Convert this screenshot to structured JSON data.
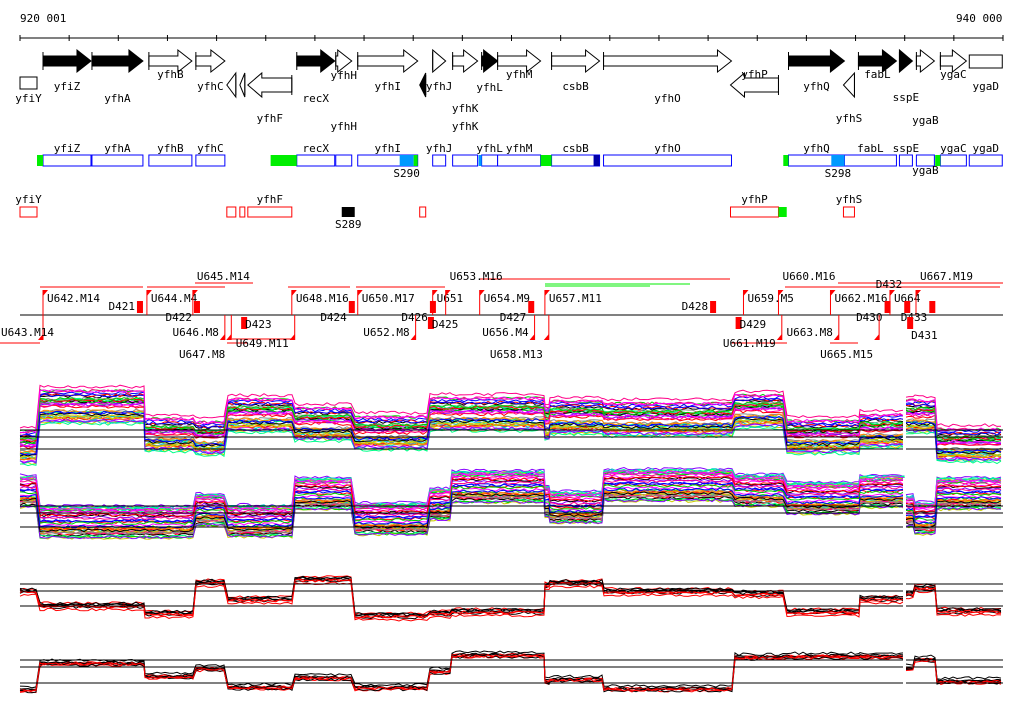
{
  "ruler": {
    "start_label": "920 001",
    "end_label": "940 000",
    "start_bp": 920001,
    "end_bp": 940000
  },
  "genes": [
    {
      "name": "yfiY",
      "start": 920001,
      "end": 920347,
      "strand": "none",
      "fill": "white"
    },
    {
      "name": "yfiZ",
      "start": 920469,
      "end": 921445,
      "strand": "+",
      "fill": "black"
    },
    {
      "name": "yfhA",
      "start": 921465,
      "end": 922502,
      "strand": "+",
      "fill": "black"
    },
    {
      "name": "yfhB",
      "start": 922623,
      "end": 923498,
      "strand": "+",
      "fill": "white"
    },
    {
      "name": "yfhC",
      "start": 923579,
      "end": 924169,
      "strand": "+",
      "fill": "white"
    },
    {
      "name": "",
      "start": 924209,
      "end": 924392,
      "strand": "-",
      "fill": "white"
    },
    {
      "name": "",
      "start": 924474,
      "end": 924575,
      "strand": "-",
      "fill": "white"
    },
    {
      "name": "yfhF",
      "start": 924636,
      "end": 925531,
      "strand": "-",
      "fill": "white"
    },
    {
      "name": "recX",
      "start": 925632,
      "end": 926404,
      "strand": "+",
      "fill": "black"
    },
    {
      "name": "yfhH",
      "start": 926425,
      "end": 926750,
      "strand": "+",
      "fill": "white"
    },
    {
      "name": "yfhI",
      "start": 926872,
      "end": 928092,
      "strand": "+",
      "fill": "white"
    },
    {
      "name": "",
      "start": 928133,
      "end": 928255,
      "strand": "-",
      "fill": "black"
    },
    {
      "name": "yfhJ",
      "start": 928397,
      "end": 928661,
      "strand": "+",
      "fill": "white"
    },
    {
      "name": "yfhK",
      "start": 928803,
      "end": 929311,
      "strand": "+",
      "fill": "white"
    },
    {
      "name": "yfhL",
      "start": 929393,
      "end": 929718,
      "strand": "+",
      "fill": "black"
    },
    {
      "name": "yfhM",
      "start": 929718,
      "end": 930592,
      "strand": "+",
      "fill": "white"
    },
    {
      "name": "csbB",
      "start": 930816,
      "end": 931792,
      "strand": "+",
      "fill": "white"
    },
    {
      "name": "yfhO",
      "start": 931873,
      "end": 934476,
      "strand": "+",
      "fill": "white"
    },
    {
      "name": "yfhP",
      "start": 934456,
      "end": 935432,
      "strand": "-",
      "fill": "white"
    },
    {
      "name": "yfhQ",
      "start": 935636,
      "end": 936774,
      "strand": "+",
      "fill": "black"
    },
    {
      "name": "yfhS",
      "start": 936754,
      "end": 936978,
      "strand": "-",
      "fill": "white"
    },
    {
      "name": "fabL",
      "start": 937059,
      "end": 937832,
      "strand": "+",
      "fill": "black"
    },
    {
      "name": "sspE",
      "start": 937893,
      "end": 938157,
      "strand": "+",
      "fill": "black"
    },
    {
      "name": "ygaB",
      "start": 938238,
      "end": 938604,
      "strand": "+",
      "fill": "white"
    },
    {
      "name": "ygaC",
      "start": 938726,
      "end": 939255,
      "strand": "+",
      "fill": "white"
    },
    {
      "name": "ygaD",
      "start": 939314,
      "end": 939985,
      "strand": "none",
      "fill": "white"
    }
  ],
  "operons_forward": [
    {
      "name": "yfiZ",
      "start": 920469,
      "end": 921445
    },
    {
      "name": "yfhA",
      "start": 921465,
      "end": 922502
    },
    {
      "name": "yfhB",
      "start": 922623,
      "end": 923498
    },
    {
      "name": "yfhC",
      "start": 923579,
      "end": 924169
    },
    {
      "name": "recX",
      "start": 925632,
      "end": 926404
    },
    {
      "name": "yfhH",
      "start": 926425,
      "end": 926750
    },
    {
      "name": "yfhI",
      "start": 926872,
      "end": 928092
    },
    {
      "name": "yfhJ",
      "start": 928397,
      "end": 928661
    },
    {
      "name": "yfhK",
      "start": 928803,
      "end": 929311
    },
    {
      "name": "yfhL",
      "start": 929393,
      "end": 929718
    },
    {
      "name": "yfhM",
      "start": 929718,
      "end": 930592
    },
    {
      "name": "csbB",
      "start": 930816,
      "end": 931792
    },
    {
      "name": "yfhO",
      "start": 931873,
      "end": 934476
    },
    {
      "name": "yfhQ",
      "start": 935636,
      "end": 936774
    },
    {
      "name": "fabL",
      "start": 936774,
      "end": 937832
    },
    {
      "name": "sspE",
      "start": 937893,
      "end": 938157
    },
    {
      "name": "ygaB",
      "start": 938238,
      "end": 938604
    },
    {
      "name": "ygaC",
      "start": 938726,
      "end": 939255
    },
    {
      "name": "ygaD",
      "start": 939314,
      "end": 939985
    }
  ],
  "forward_marks": [
    {
      "kind": "promoter",
      "start": 920347,
      "end": 920469,
      "color": "#00ee00"
    },
    {
      "kind": "promoter",
      "start": 925100,
      "end": 925632,
      "color": "#00ee00"
    },
    {
      "kind": "sigma",
      "label": "S290",
      "start": 927726,
      "end": 928010,
      "color": "#0099ff"
    },
    {
      "kind": "promoter",
      "start": 928010,
      "end": 928092,
      "color": "#00ee00"
    },
    {
      "kind": "sigma",
      "label": "",
      "start": 929331,
      "end": 929393,
      "color": "#0099ff"
    },
    {
      "kind": "promoter",
      "start": 930592,
      "end": 930816,
      "color": "#00ee00"
    },
    {
      "kind": "site",
      "label": "",
      "start": 931670,
      "end": 931792,
      "color": "#0000aa"
    },
    {
      "kind": "promoter",
      "start": 935530,
      "end": 935636,
      "color": "#00ee00"
    },
    {
      "kind": "sigma",
      "label": "S298",
      "start": 936507,
      "end": 936774,
      "color": "#0099ff"
    },
    {
      "kind": "promoter",
      "start": 938620,
      "end": 938726,
      "color": "#00ee00"
    }
  ],
  "operons_reverse": [
    {
      "name": "yfiY",
      "start": 920001,
      "end": 920347
    },
    {
      "name": "",
      "start": 924209,
      "end": 924392
    },
    {
      "name": "",
      "start": 924474,
      "end": 924575
    },
    {
      "name": "yfhF",
      "start": 924636,
      "end": 925531
    },
    {
      "name": "",
      "start": 928133,
      "end": 928255
    },
    {
      "name": "yfhP",
      "start": 934456,
      "end": 935432
    },
    {
      "name": "yfhS",
      "start": 936754,
      "end": 936978
    }
  ],
  "reverse_marks": [
    {
      "label": "S289",
      "start": 926547,
      "end": 926811,
      "color": "#000000"
    },
    {
      "label": "",
      "start": 935432,
      "end": 935600,
      "color": "#00ee00"
    }
  ],
  "segments_upper": [
    {
      "label": "U642.M14",
      "pos": 920469
    },
    {
      "label": "D421",
      "pos": 922340
    },
    {
      "label": "U644.M4",
      "pos": 922583
    },
    {
      "label": "U645.M14",
      "pos": 923518
    },
    {
      "label": "D422",
      "pos": 923500
    },
    {
      "label": "U648.M16",
      "pos": 925531
    },
    {
      "label": "D424",
      "pos": 926650
    },
    {
      "label": "U650.M17",
      "pos": 926872
    },
    {
      "label": "D426",
      "pos": 928300
    },
    {
      "label": "U651",
      "pos": 928397
    },
    {
      "label": "U653.M16",
      "pos": 928661
    },
    {
      "label": "U654.M9",
      "pos": 929353
    },
    {
      "label": "D427",
      "pos": 930300
    },
    {
      "label": "U657.M11",
      "pos": 930680
    },
    {
      "label": "D428",
      "pos": 934000
    },
    {
      "label": "U659.M5",
      "pos": 934720
    },
    {
      "label": "U660.M16",
      "pos": 935432
    },
    {
      "label": "U662.M16",
      "pos": 936490
    },
    {
      "label": "D430",
      "pos": 937550
    },
    {
      "label": "U664",
      "pos": 937700
    },
    {
      "label": "D432",
      "pos": 937950
    },
    {
      "label": "U667.M19",
      "pos": 938230
    },
    {
      "label": "D433",
      "pos": 938460
    }
  ],
  "segments_lower": [
    {
      "label": "U643.M14",
      "pos": 920469
    },
    {
      "label": "U646.M8",
      "pos": 924169
    },
    {
      "label": "U647.M8",
      "pos": 924300
    },
    {
      "label": "D423",
      "pos": 924500
    },
    {
      "label": "U649.M11",
      "pos": 925590
    },
    {
      "label": "U652.M8",
      "pos": 928050
    },
    {
      "label": "D425",
      "pos": 928300
    },
    {
      "label": "U656.M4",
      "pos": 930470
    },
    {
      "label": "U658.M13",
      "pos": 930760
    },
    {
      "label": "D429",
      "pos": 934560
    },
    {
      "label": "U661.M19",
      "pos": 935500
    },
    {
      "label": "U663.M8",
      "pos": 936660
    },
    {
      "label": "U665.M15",
      "pos": 937480
    },
    {
      "label": "D431",
      "pos": 938050
    }
  ],
  "expression_panels": [
    {
      "name": "panel-1",
      "palette": "rainbow",
      "series": 40
    },
    {
      "name": "panel-2",
      "palette": "rainbow",
      "series": 40
    },
    {
      "name": "panel-3",
      "palette": "black-red",
      "series": 8
    },
    {
      "name": "panel-4",
      "palette": "black-red",
      "series": 8
    }
  ]
}
